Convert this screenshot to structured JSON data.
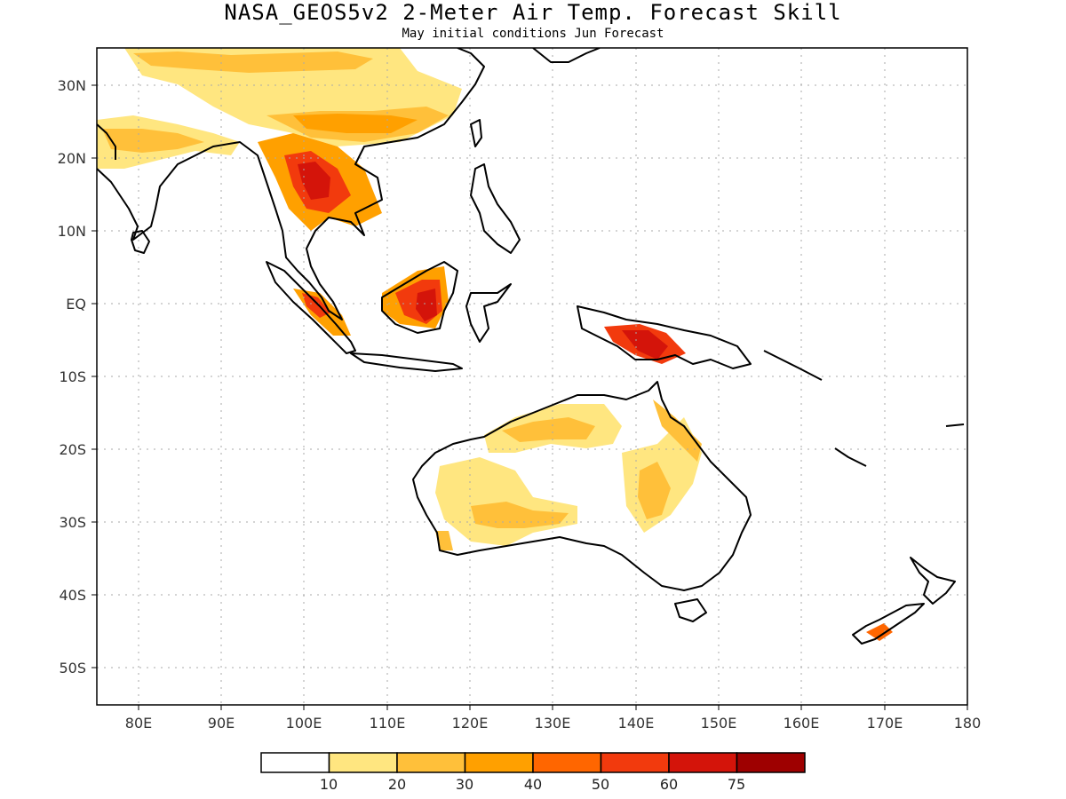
{
  "header": {
    "title": "NASA_GEOS5v2 2-Meter Air Temp. Forecast Skill",
    "subtitle": "May initial conditions  Jun Forecast"
  },
  "map": {
    "lon_range": [
      75,
      180
    ],
    "lat_range": [
      -55,
      35
    ],
    "lon_ticks": [
      "80E",
      "90E",
      "100E",
      "110E",
      "120E",
      "130E",
      "140E",
      "150E",
      "160E",
      "170E",
      "180"
    ],
    "lat_ticks": [
      "30N",
      "20N",
      "10N",
      "EQ",
      "10S",
      "20S",
      "30S",
      "40S",
      "50S"
    ],
    "gridlines": "dotted"
  },
  "colorbar": {
    "colors": [
      "#ffffff",
      "#ffe680",
      "#ffc03a",
      "#ffa000",
      "#ff6600",
      "#f23a0d",
      "#d4140a",
      "#9e0000"
    ],
    "labels": [
      "10",
      "20",
      "30",
      "40",
      "50",
      "60",
      "75"
    ]
  }
}
